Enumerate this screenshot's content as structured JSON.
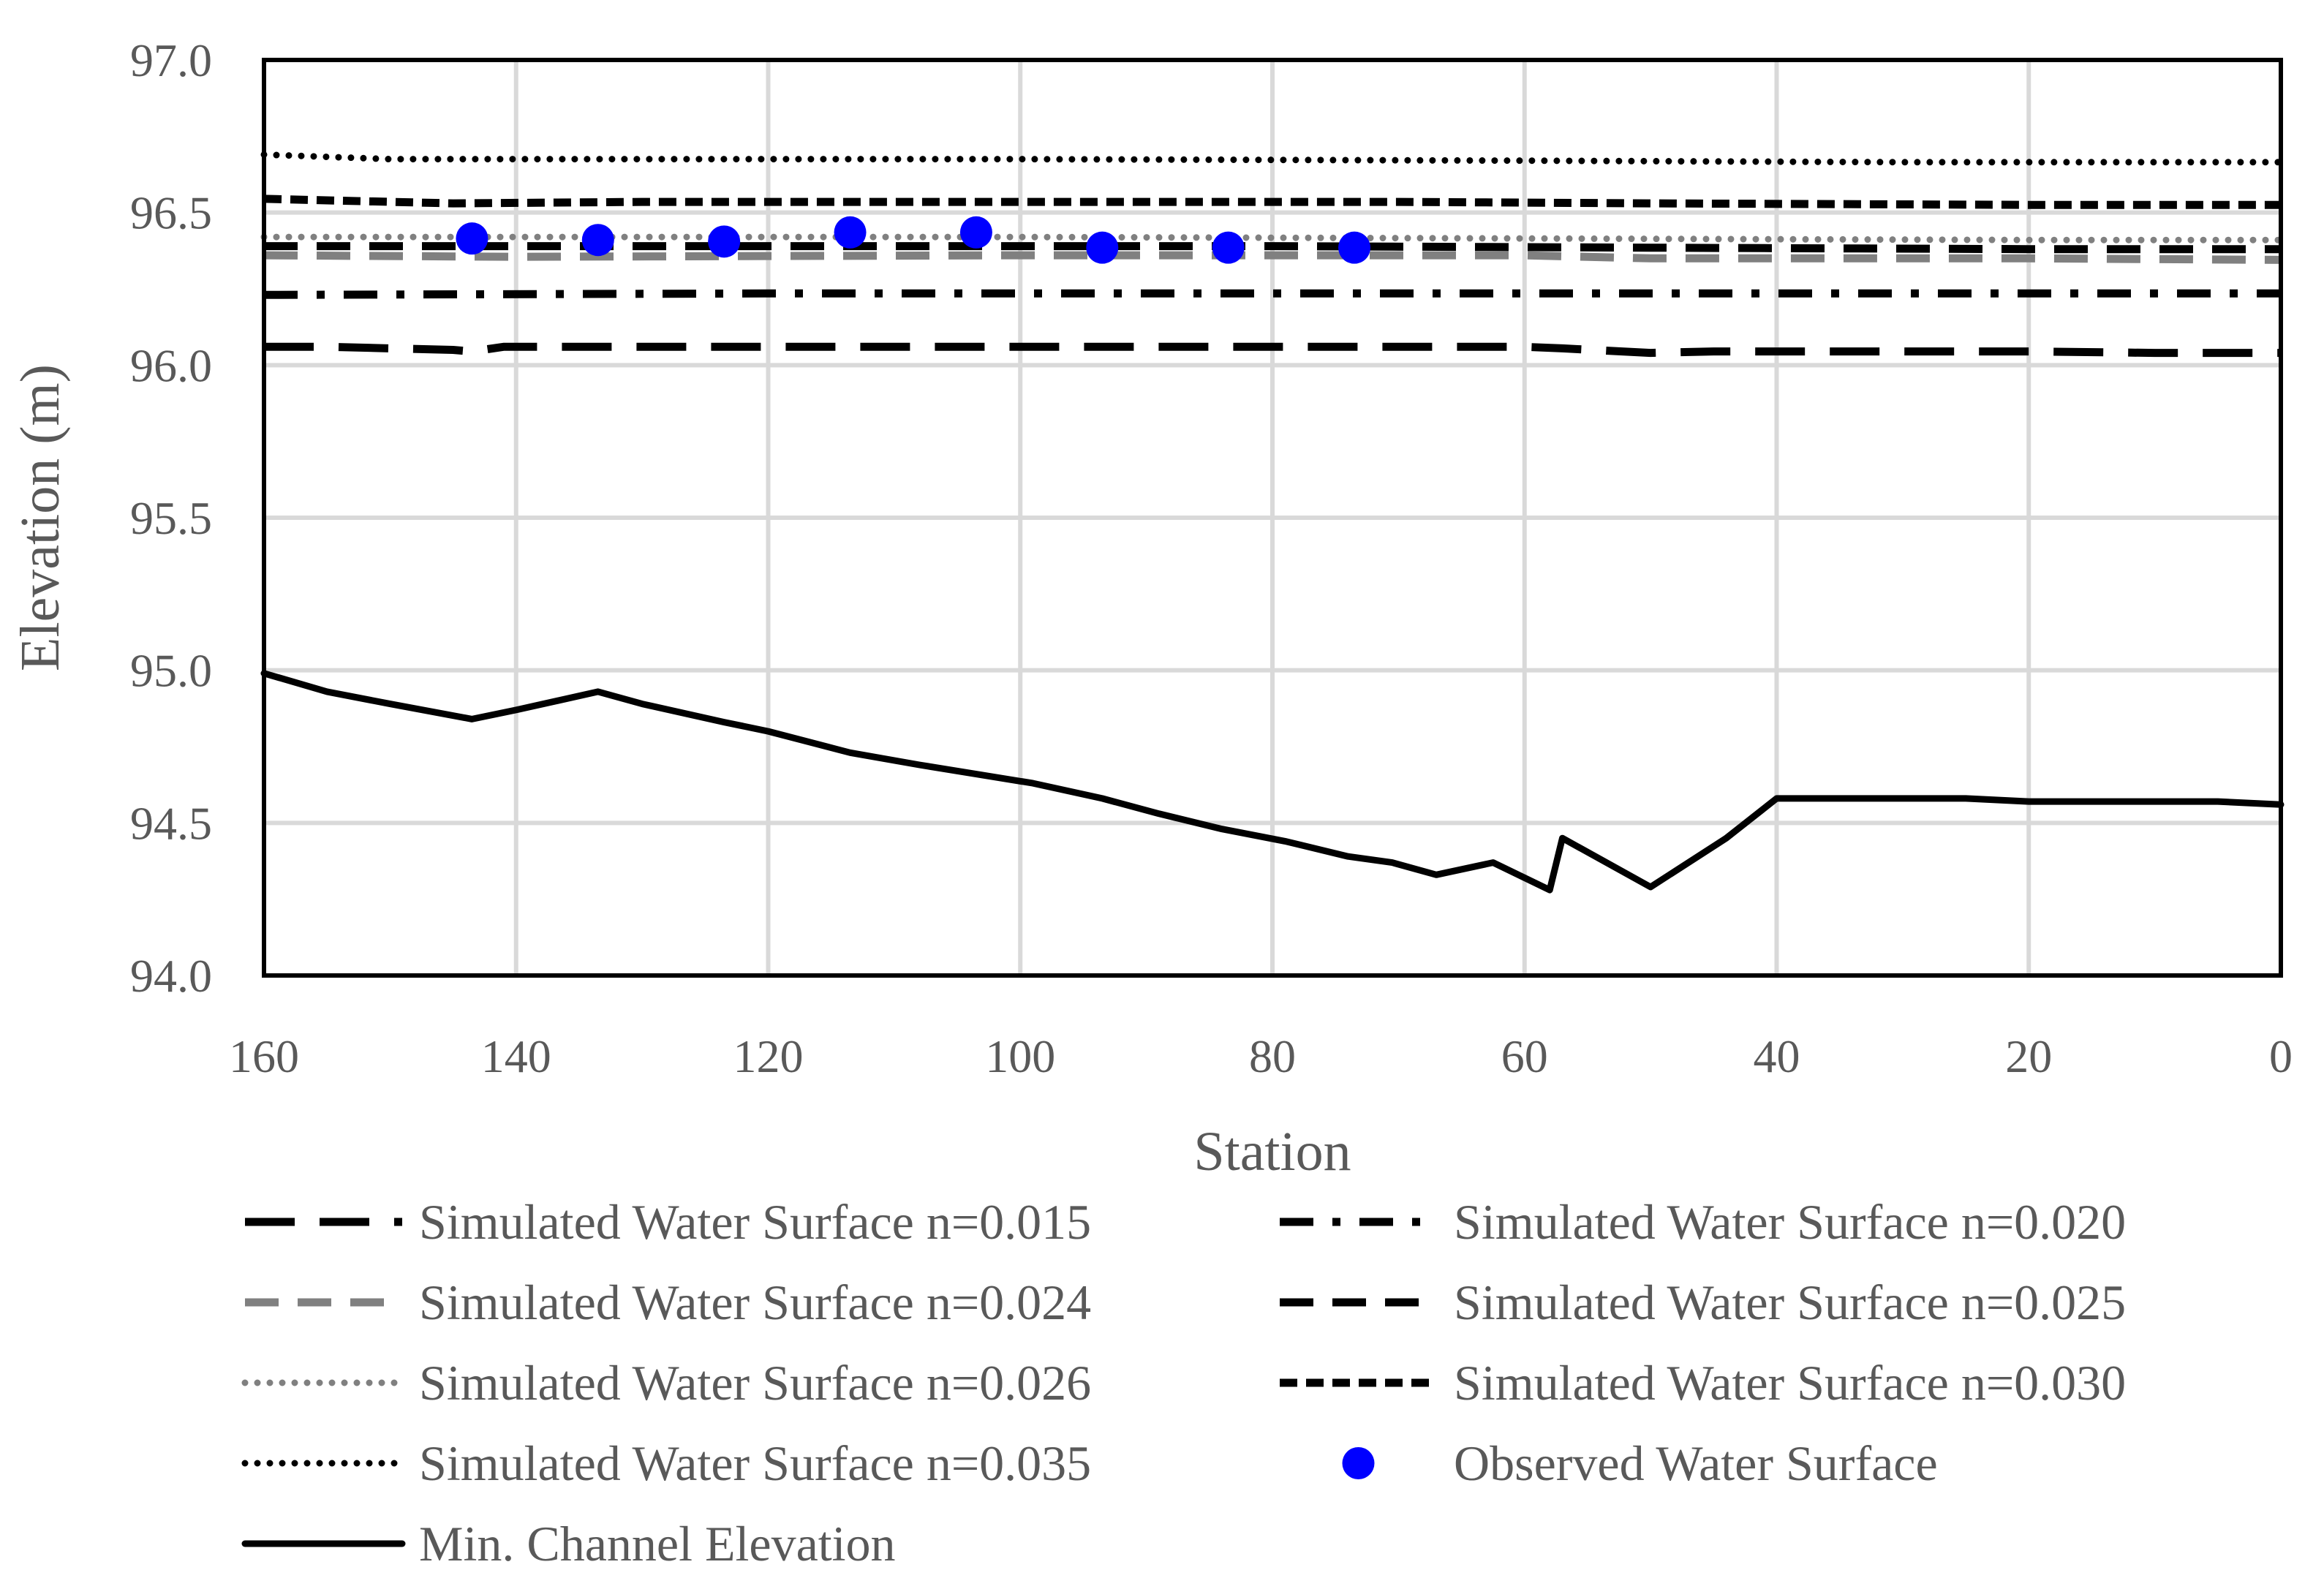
{
  "chart_data": {
    "type": "line",
    "title": "",
    "xlabel": "Station",
    "ylabel": "Elevation (m)",
    "x_reversed": true,
    "xlim": [
      0,
      160
    ],
    "ylim": [
      94.0,
      97.0
    ],
    "x_ticks": [
      "160",
      "140",
      "120",
      "100",
      "80",
      "60",
      "40",
      "20",
      "0"
    ],
    "x_tick_values": [
      160,
      140,
      120,
      100,
      80,
      60,
      40,
      20,
      0
    ],
    "y_ticks": [
      "97.0",
      "96.5",
      "96.0",
      "95.5",
      "95.0",
      "94.5",
      "94.0"
    ],
    "y_tick_values": [
      97.0,
      96.5,
      96.0,
      95.5,
      95.0,
      94.5,
      94.0
    ],
    "grid": true,
    "legend_position": "bottom",
    "series": [
      {
        "name": "Simulated Water Surface n=0.015",
        "style": "long-dash",
        "color": "#000000",
        "points": [
          [
            160,
            96.06
          ],
          [
            155,
            96.06
          ],
          [
            150,
            96.055
          ],
          [
            145,
            96.05
          ],
          [
            143.5,
            96.045
          ],
          [
            141,
            96.06
          ],
          [
            140,
            96.06
          ],
          [
            130,
            96.06
          ],
          [
            120,
            96.06
          ],
          [
            110,
            96.06
          ],
          [
            100,
            96.06
          ],
          [
            90,
            96.06
          ],
          [
            80,
            96.06
          ],
          [
            70,
            96.06
          ],
          [
            60,
            96.06
          ],
          [
            57,
            96.055
          ],
          [
            50,
            96.04
          ],
          [
            45,
            96.045
          ],
          [
            40,
            96.045
          ],
          [
            30,
            96.045
          ],
          [
            20,
            96.045
          ],
          [
            10,
            96.04
          ],
          [
            0,
            96.04
          ]
        ]
      },
      {
        "name": "Simulated Water Surface n=0.020",
        "style": "dash-dot",
        "color": "#000000",
        "points": [
          [
            160,
            96.23
          ],
          [
            120,
            96.235
          ],
          [
            80,
            96.235
          ],
          [
            40,
            96.235
          ],
          [
            0,
            96.235
          ]
        ]
      },
      {
        "name": "Simulated Water Surface n=0.024",
        "style": "dash",
        "color": "#808080",
        "points": [
          [
            160,
            96.36
          ],
          [
            140,
            96.355
          ],
          [
            100,
            96.36
          ],
          [
            60,
            96.36
          ],
          [
            50,
            96.35
          ],
          [
            20,
            96.35
          ],
          [
            0,
            96.345
          ]
        ]
      },
      {
        "name": "Simulated Water Surface n=0.025",
        "style": "dash",
        "color": "#000000",
        "points": [
          [
            160,
            96.39
          ],
          [
            120,
            96.39
          ],
          [
            80,
            96.39
          ],
          [
            50,
            96.385
          ],
          [
            20,
            96.38
          ],
          [
            0,
            96.38
          ]
        ]
      },
      {
        "name": "Simulated Water Surface n=0.026",
        "style": "dot",
        "color": "#808080",
        "points": [
          [
            160,
            96.42
          ],
          [
            100,
            96.42
          ],
          [
            60,
            96.415
          ],
          [
            20,
            96.41
          ],
          [
            0,
            96.41
          ]
        ]
      },
      {
        "name": "Simulated Water Surface n=0.030",
        "style": "short-dash",
        "color": "#000000",
        "points": [
          [
            160,
            96.545
          ],
          [
            145,
            96.53
          ],
          [
            130,
            96.535
          ],
          [
            100,
            96.535
          ],
          [
            70,
            96.535
          ],
          [
            50,
            96.53
          ],
          [
            20,
            96.525
          ],
          [
            0,
            96.525
          ]
        ]
      },
      {
        "name": "Simulated Water Surface n=0.035",
        "style": "dot",
        "color": "#000000",
        "points": [
          [
            160,
            96.69
          ],
          [
            150,
            96.675
          ],
          [
            140,
            96.675
          ],
          [
            100,
            96.675
          ],
          [
            60,
            96.67
          ],
          [
            30,
            96.665
          ],
          [
            0,
            96.665
          ]
        ]
      },
      {
        "name": "Observed Water Surface",
        "style": "marker",
        "color": "#0000ff",
        "points": [
          [
            143.5,
            96.415
          ],
          [
            133.5,
            96.41
          ],
          [
            123.5,
            96.405
          ],
          [
            113.5,
            96.435
          ],
          [
            103.5,
            96.435
          ],
          [
            93.5,
            96.385
          ],
          [
            83.5,
            96.385
          ],
          [
            73.5,
            96.385
          ]
        ]
      },
      {
        "name": "Min. Channel Elevation",
        "style": "solid",
        "color": "#000000",
        "points": [
          [
            160,
            94.99
          ],
          [
            155,
            94.93
          ],
          [
            150,
            94.89
          ],
          [
            143.5,
            94.84
          ],
          [
            140,
            94.87
          ],
          [
            133.5,
            94.93
          ],
          [
            130,
            94.89
          ],
          [
            123.5,
            94.83
          ],
          [
            120,
            94.8
          ],
          [
            113.5,
            94.73
          ],
          [
            108,
            94.69
          ],
          [
            103.5,
            94.66
          ],
          [
            99,
            94.63
          ],
          [
            93.5,
            94.58
          ],
          [
            89,
            94.53
          ],
          [
            84,
            94.48
          ],
          [
            79,
            94.44
          ],
          [
            74,
            94.39
          ],
          [
            70.5,
            94.37
          ],
          [
            67,
            94.33
          ],
          [
            62.5,
            94.37
          ],
          [
            58,
            94.28
          ],
          [
            57,
            94.45
          ],
          [
            50,
            94.29
          ],
          [
            44,
            94.45
          ],
          [
            40,
            94.58
          ],
          [
            35,
            94.58
          ],
          [
            25,
            94.58
          ],
          [
            20,
            94.57
          ],
          [
            10,
            94.57
          ],
          [
            5,
            94.57
          ],
          [
            0,
            94.56
          ]
        ]
      }
    ]
  }
}
